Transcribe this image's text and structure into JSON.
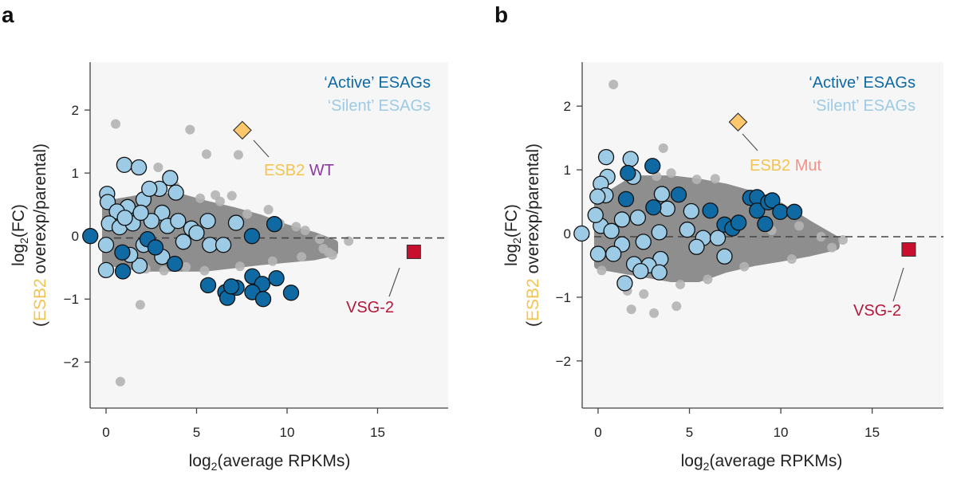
{
  "colors": {
    "active": "#0f6aa3",
    "silent": "#9dcbe6",
    "other_genes": "#8e8e8e",
    "other_genes_light": "#b4b4b4",
    "esb2_marker": "#fcc86b",
    "vsg2_marker": "#c8102e",
    "esb2_text": "#f3c44f",
    "wt_text": "#8a3a9e",
    "mut_text": "#f0928a",
    "vsg2_text": "#b5173a",
    "plot_background": "#f6f6f6"
  },
  "chart_data": [
    {
      "panel_label": "a",
      "type": "scatter",
      "xlabel": {
        "pre": "log",
        "sub": "2",
        "post": "(average RPKMs)"
      },
      "ylabel": {
        "pre": "log",
        "sub": "2",
        "post": "(FC)",
        "open": "(",
        "highlight": "ESB2",
        "rest": " overexp/parental)"
      },
      "xlim": [
        -0.88,
        18.9
      ],
      "ylim": [
        -2.73,
        2.76
      ],
      "xticks": [
        "0",
        "5",
        "10",
        "15"
      ],
      "yticks": [
        "2",
        "1",
        "0",
        "−1",
        "−2"
      ],
      "xtick_values": [
        0,
        5,
        10,
        15
      ],
      "ytick_values": [
        2,
        1,
        0,
        -1,
        -2
      ],
      "reference_line_y": -0.03,
      "grid": false,
      "legend": {
        "placement": "top-right",
        "active": "‘Active’ ESAGs",
        "silent": "‘Silent’ ESAGs"
      },
      "esb2": {
        "x": 7.53,
        "y": 1.68,
        "label_gene": "ESB2",
        "label_variant": "WT"
      },
      "vsg2": {
        "x": 17.0,
        "y": -0.25,
        "label": "VSG-2"
      },
      "gene_cloud_envelope": [
        [
          0,
          -0.4,
          0.5
        ],
        [
          2,
          -0.5,
          0.6
        ],
        [
          4,
          -0.5,
          0.62
        ],
        [
          5.5,
          -0.5,
          0.5
        ],
        [
          7,
          -0.45,
          0.4
        ],
        [
          8.5,
          -0.4,
          0.28
        ],
        [
          10,
          -0.36,
          0.12
        ],
        [
          11.5,
          -0.32,
          0.0
        ],
        [
          12.6,
          -0.25,
          -0.12
        ]
      ],
      "other_genes": [
        [
          0.53,
          1.78
        ],
        [
          4.64,
          1.69
        ],
        [
          5.55,
          1.3
        ],
        [
          7.31,
          1.29
        ],
        [
          2.88,
          1.09
        ],
        [
          1.89,
          -1.09
        ],
        [
          0.79,
          -2.31
        ],
        [
          13.4,
          -0.08
        ],
        [
          8.97,
          0.42
        ],
        [
          6.95,
          0.64
        ],
        [
          6.04,
          0.65
        ],
        [
          11.0,
          0.09
        ],
        [
          10.5,
          0.15
        ],
        [
          12.3,
          -0.26
        ],
        [
          5.44,
          -0.55
        ],
        [
          4.41,
          -0.49
        ],
        [
          3.8,
          0.8
        ],
        [
          5.2,
          0.6
        ],
        [
          6.3,
          0.55
        ],
        [
          7.8,
          0.35
        ],
        [
          9.6,
          0.2
        ],
        [
          11.8,
          -0.05
        ],
        [
          12.5,
          -0.3
        ],
        [
          9.2,
          -0.4
        ],
        [
          7.4,
          -0.48
        ],
        [
          3.2,
          -0.55
        ],
        [
          2.2,
          -0.52
        ],
        [
          12.0,
          -0.2
        ],
        [
          10.8,
          -0.33
        ]
      ],
      "active_esags": [
        [
          -0.87,
          0.0
        ],
        [
          0.9,
          -0.26
        ],
        [
          0.93,
          -0.56
        ],
        [
          2.29,
          -0.05
        ],
        [
          2.73,
          -0.18
        ],
        [
          3.8,
          -0.44
        ],
        [
          8.06,
          0.0
        ],
        [
          9.3,
          0.19
        ],
        [
          5.64,
          -0.78
        ],
        [
          6.59,
          -0.89
        ],
        [
          6.7,
          -0.98
        ],
        [
          7.21,
          -0.82
        ],
        [
          6.92,
          -0.8
        ],
        [
          8.08,
          -0.64
        ],
        [
          8.63,
          -0.76
        ],
        [
          8.08,
          -0.89
        ],
        [
          8.68,
          -1.0
        ],
        [
          9.41,
          -0.67
        ],
        [
          10.22,
          -0.9
        ]
      ],
      "silent_esags": [
        [
          1.01,
          1.13
        ],
        [
          1.81,
          1.09
        ],
        [
          3.54,
          0.92
        ],
        [
          3.86,
          0.69
        ],
        [
          0.06,
          0.67
        ],
        [
          0.09,
          0.54
        ],
        [
          1.19,
          0.46
        ],
        [
          2.07,
          0.58
        ],
        [
          2.95,
          0.75
        ],
        [
          2.39,
          0.75
        ],
        [
          3.1,
          0.37
        ],
        [
          0.6,
          0.39
        ],
        [
          0.16,
          0.2
        ],
        [
          0.75,
          0.14
        ],
        [
          1.48,
          0.2
        ],
        [
          2.51,
          0.24
        ],
        [
          3.39,
          0.16
        ],
        [
          3.98,
          0.24
        ],
        [
          4.71,
          0.12
        ],
        [
          5.62,
          0.24
        ],
        [
          5.0,
          0.05
        ],
        [
          4.27,
          -0.09
        ],
        [
          5.74,
          -0.14
        ],
        [
          6.48,
          -0.14
        ],
        [
          7.18,
          0.21
        ],
        [
          0.0,
          -0.14
        ],
        [
          0.0,
          -0.54
        ],
        [
          1.85,
          -0.47
        ],
        [
          1.33,
          -0.3
        ],
        [
          3.1,
          -0.33
        ],
        [
          2.07,
          -0.14
        ],
        [
          1.04,
          0.29
        ],
        [
          1.92,
          0.37
        ]
      ]
    },
    {
      "panel_label": "b",
      "type": "scatter",
      "xlabel": {
        "pre": "log",
        "sub": "2",
        "post": "(average RPKMs)"
      },
      "ylabel": {
        "pre": "log",
        "sub": "2",
        "post": "(FC)",
        "open": "(",
        "highlight": "ESB2",
        "rest": " overexp/parental)"
      },
      "xlim": [
        -0.87,
        18.9
      ],
      "ylim": [
        -2.74,
        2.69
      ],
      "xticks": [
        "0",
        "5",
        "10",
        "15"
      ],
      "yticks": [
        "2",
        "1",
        "0",
        "−1",
        "−2"
      ],
      "xtick_values": [
        0,
        5,
        10,
        15
      ],
      "ytick_values": [
        2,
        1,
        0,
        -1,
        -2
      ],
      "reference_line_y": -0.05,
      "grid": false,
      "legend": {
        "placement": "top-right",
        "active": "‘Active’ ESAGs",
        "silent": "‘Silent’ ESAGs"
      },
      "esb2": {
        "x": 7.66,
        "y": 1.75,
        "label_gene": "ESB2",
        "label_variant": "Mut"
      },
      "vsg2": {
        "x": 17.0,
        "y": -0.25,
        "label": "VSG-2"
      },
      "gene_cloud_envelope": [
        [
          0,
          -0.5,
          0.5
        ],
        [
          2,
          -0.6,
          0.85
        ],
        [
          4,
          -0.7,
          0.85
        ],
        [
          5.5,
          -0.7,
          0.8
        ],
        [
          7,
          -0.55,
          0.72
        ],
        [
          8.5,
          -0.45,
          0.6
        ],
        [
          10,
          -0.38,
          0.42
        ],
        [
          11.5,
          -0.3,
          0.15
        ],
        [
          13,
          -0.2,
          -0.1
        ]
      ],
      "other_genes": [
        [
          0.84,
          2.34
        ],
        [
          3.57,
          1.34
        ],
        [
          1.82,
          -1.19
        ],
        [
          3.06,
          -1.25
        ],
        [
          4.29,
          -1.14
        ],
        [
          13.4,
          -0.1
        ],
        [
          6.41,
          0.86
        ],
        [
          11.0,
          0.12
        ],
        [
          4.0,
          0.95
        ],
        [
          3.2,
          0.9
        ],
        [
          5.4,
          0.85
        ],
        [
          8.6,
          0.55
        ],
        [
          12.2,
          -0.05
        ],
        [
          12.8,
          -0.22
        ],
        [
          10.6,
          -0.4
        ],
        [
          8.0,
          -0.52
        ],
        [
          6.0,
          -0.72
        ],
        [
          4.5,
          -0.8
        ],
        [
          2.5,
          -0.95
        ],
        [
          1.6,
          -0.9
        ],
        [
          0.2,
          -0.58
        ],
        [
          9.5,
          0.05
        ]
      ],
      "active_esags": [
        [
          1.63,
          0.95
        ],
        [
          2.98,
          1.06
        ],
        [
          1.53,
          0.54
        ],
        [
          3.03,
          0.41
        ],
        [
          4.41,
          0.61
        ],
        [
          6.14,
          0.36
        ],
        [
          6.92,
          0.14
        ],
        [
          7.35,
          0.08
        ],
        [
          7.69,
          0.17
        ],
        [
          8.33,
          0.56
        ],
        [
          8.7,
          0.57
        ],
        [
          8.7,
          0.36
        ],
        [
          9.31,
          0.49
        ],
        [
          9.53,
          0.52
        ],
        [
          9.14,
          0.15
        ],
        [
          9.97,
          0.34
        ],
        [
          10.74,
          0.34
        ]
      ],
      "silent_esags": [
        [
          -0.9,
          0.0
        ],
        [
          0.44,
          1.2
        ],
        [
          1.78,
          1.17
        ],
        [
          0.51,
          0.89
        ],
        [
          0.15,
          0.78
        ],
        [
          1.92,
          0.89
        ],
        [
          0.41,
          0.6
        ],
        [
          -0.03,
          0.58
        ],
        [
          3.49,
          0.62
        ],
        [
          3.79,
          0.39
        ],
        [
          5.1,
          0.35
        ],
        [
          2.18,
          0.25
        ],
        [
          0.15,
          0.12
        ],
        [
          0.73,
          0.04
        ],
        [
          3.35,
          0.02
        ],
        [
          4.88,
          0.06
        ],
        [
          5.75,
          -0.07
        ],
        [
          6.55,
          -0.07
        ],
        [
          2.48,
          -0.13
        ],
        [
          5.39,
          -0.21
        ],
        [
          6.92,
          -0.36
        ],
        [
          1.31,
          -0.17
        ],
        [
          0.0,
          -0.32
        ],
        [
          0.84,
          -0.32
        ],
        [
          3.42,
          -0.4
        ],
        [
          1.97,
          -0.48
        ],
        [
          2.77,
          -0.5
        ],
        [
          3.35,
          -0.61
        ],
        [
          1.46,
          -0.78
        ],
        [
          2.33,
          -0.59
        ],
        [
          1.31,
          0.22
        ],
        [
          -0.14,
          0.29
        ]
      ]
    }
  ]
}
